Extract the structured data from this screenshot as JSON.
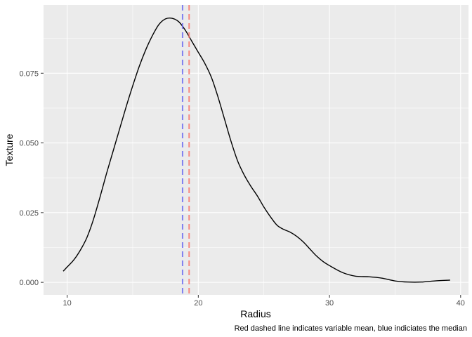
{
  "chart_data": {
    "type": "line",
    "title": "",
    "xlabel": "Radius",
    "ylabel": "Texture",
    "caption": "Red dashed line indicates variable mean, blue indiciates the median",
    "xlim": [
      8.2,
      40.6
    ],
    "ylim": [
      -0.0045,
      0.0995
    ],
    "x_ticks": [
      10,
      20,
      30,
      40
    ],
    "x_tick_labels": [
      "10",
      "20",
      "30",
      "40"
    ],
    "y_ticks": [
      0.0,
      0.025,
      0.05,
      0.075
    ],
    "y_tick_labels": [
      "0.000",
      "0.025",
      "0.050",
      "0.075"
    ],
    "grid": true,
    "series": [
      {
        "x": [
          9.7,
          10.0,
          10.5,
          11.0,
          11.5,
          12.0,
          12.5,
          13.0,
          13.5,
          14.0,
          14.5,
          15.0,
          15.5,
          16.0,
          16.5,
          17.0,
          17.5,
          18.0,
          18.5,
          19.0,
          19.5,
          20.0,
          20.5,
          21.0,
          21.5,
          22.0,
          22.5,
          23.0,
          23.5,
          24.0,
          24.5,
          25.0,
          25.5,
          26.0,
          26.5,
          27.0,
          27.5,
          28.0,
          28.5,
          29.0,
          29.5,
          30.0,
          31.0,
          32.0,
          33.0,
          34.0,
          35.0,
          36.0,
          37.0,
          38.0,
          39.2
        ],
        "y": [
          0.004,
          0.0055,
          0.008,
          0.0115,
          0.016,
          0.0225,
          0.0305,
          0.039,
          0.047,
          0.055,
          0.063,
          0.0705,
          0.0775,
          0.0835,
          0.0885,
          0.0925,
          0.0945,
          0.0947,
          0.0935,
          0.0905,
          0.0865,
          0.0825,
          0.0785,
          0.0735,
          0.0665,
          0.0585,
          0.0505,
          0.0435,
          0.0385,
          0.0345,
          0.031,
          0.027,
          0.0235,
          0.0205,
          0.019,
          0.018,
          0.0165,
          0.0145,
          0.012,
          0.0095,
          0.0075,
          0.006,
          0.0035,
          0.0022,
          0.002,
          0.0015,
          0.0005,
          0.0001,
          0.0001,
          0.0005,
          0.0008
        ]
      }
    ],
    "reference_lines": [
      {
        "label": "mean",
        "x": 19.3,
        "color": "#f8766d",
        "dash": "dashed"
      },
      {
        "label": "median",
        "x": 18.8,
        "color": "#6e6ef2",
        "dash": "dashed"
      }
    ],
    "colors": {
      "panel_background": "#ebebeb",
      "grid": "#ffffff",
      "line": "#000000",
      "text": "#4d4d4d"
    }
  }
}
